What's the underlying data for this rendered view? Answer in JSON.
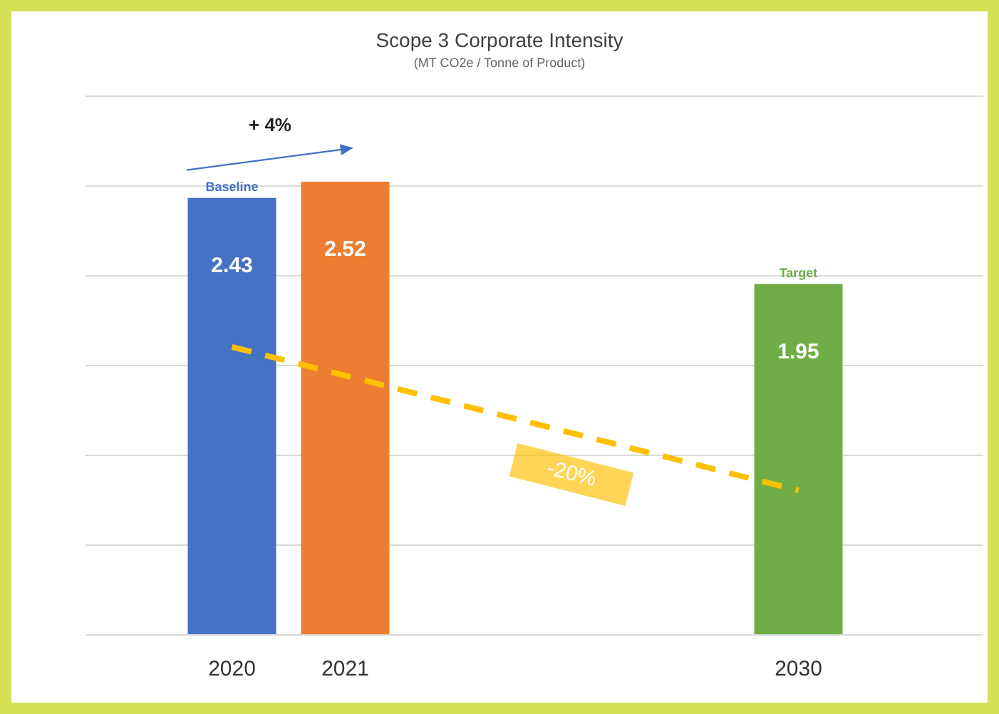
{
  "chart_data": {
    "type": "bar",
    "title": "Scope 3 Corporate Intensity",
    "subtitle": "(MT CO2e / Tonne of Product)",
    "categories": [
      "2020",
      "2021",
      null,
      null,
      null,
      "2030"
    ],
    "series": [
      {
        "colors": [
          "#4472c4",
          "#ed7d31",
          null,
          null,
          null,
          "#70ad47"
        ],
        "values": [
          2.43,
          2.52,
          null,
          null,
          null,
          1.95
        ],
        "value_labels": [
          "2.43",
          "2.52",
          null,
          null,
          null,
          "1.95"
        ]
      },
      {
        "type": "line",
        "color": "#ffc000",
        "values": [
          1.6,
          null,
          null,
          null,
          null,
          0.8
        ],
        "line_style": "dashed",
        "marker": "none"
      }
    ],
    "ylim": [
      0,
      3
    ],
    "yticks": [
      {
        "value": 0,
        "label": null
      },
      {
        "value": 0.5,
        "label": null
      },
      {
        "value": 1,
        "label": null
      },
      {
        "value": 1.5,
        "label": null
      },
      {
        "value": 2,
        "label": null
      },
      {
        "value": 2.5,
        "label": null
      },
      {
        "value": 3,
        "label": null
      }
    ],
    "tick_labels": "x",
    "grid": "y",
    "legend": false,
    "annotations": [
      {
        "text": "Baseline",
        "x": "2020",
        "y": 2.43
      },
      {
        "text": "Target",
        "x": "2030",
        "y": 1.95
      },
      "+ 4%",
      "-20%"
    ]
  }
}
